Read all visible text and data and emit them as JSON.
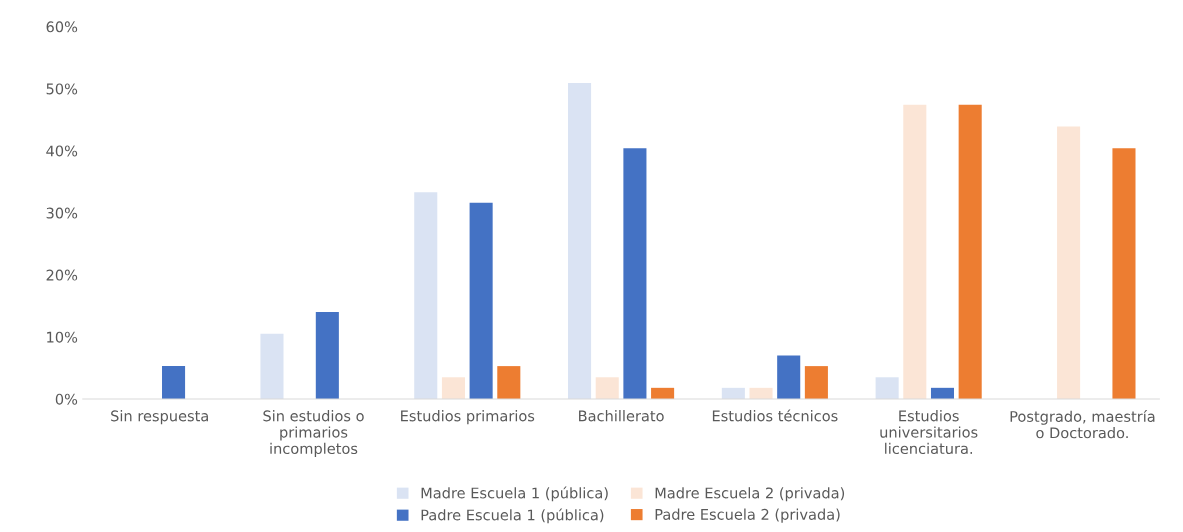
{
  "chart_data": {
    "type": "bar",
    "categories": [
      "Sin respuesta",
      "Sin estudios o\nprimarios\nincompletos",
      "Estudios primarios",
      "Bachillerato",
      "Estudios técnicos",
      "Estudios\nuniversitarios\nlicenciatura.",
      "Postgrado, maestría\no Doctorado."
    ],
    "series": [
      {
        "name": "Madre Escuela 1 (pública)",
        "color": "#dae3f3",
        "values": [
          0,
          10.5,
          33.3,
          50.9,
          1.8,
          3.5,
          0
        ]
      },
      {
        "name": "Madre Escuela 2 (privada)",
        "color": "#fbe5d6",
        "values": [
          0,
          0,
          3.5,
          3.5,
          1.8,
          47.4,
          43.9
        ]
      },
      {
        "name": "Padre Escuela 1 (pública)",
        "color": "#4472c4",
        "values": [
          5.3,
          14.0,
          31.6,
          40.4,
          7.0,
          1.8,
          0
        ]
      },
      {
        "name": "Padre Escuela 2 (privada)",
        "color": "#ed7d31",
        "values": [
          0,
          0,
          5.3,
          1.8,
          5.3,
          47.4,
          40.4
        ]
      }
    ],
    "ylim": [
      0,
      60
    ],
    "yticks": [
      {
        "value": 0,
        "label": "0%"
      },
      {
        "value": 10,
        "label": "10%"
      },
      {
        "value": 20,
        "label": "20%"
      },
      {
        "value": 30,
        "label": "30%"
      },
      {
        "value": 40,
        "label": "40%"
      },
      {
        "value": 50,
        "label": "50%"
      },
      {
        "value": 60,
        "label": "60%"
      }
    ],
    "grid": false,
    "legend": "bottom"
  }
}
